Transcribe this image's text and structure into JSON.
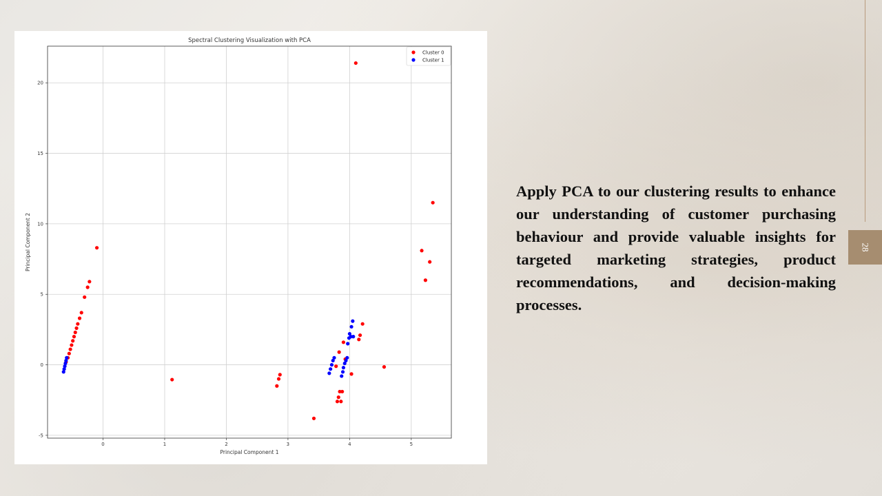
{
  "slide": {
    "body_text": "Apply PCA to our clustering results to enhance our understanding of customer purchasing behaviour and provide valuable insights for targeted marketing strategies, product recommendations, and decision-making processes.",
    "page_number": "28",
    "accent_color": "#a68d70"
  },
  "chart_data": {
    "type": "scatter",
    "title": "Spectral Clustering Visualization with PCA",
    "xlabel": "Principal Component 1",
    "ylabel": "Principal Component 2",
    "xlim": [
      -0.9,
      5.65
    ],
    "ylim": [
      -5.2,
      22.6
    ],
    "x_ticks": [
      0,
      1,
      2,
      3,
      4,
      5
    ],
    "y_ticks": [
      -5,
      0,
      5,
      10,
      15,
      20
    ],
    "grid": true,
    "legend_position": "top-right",
    "series": [
      {
        "name": "Cluster 0",
        "color": "#ff0000",
        "points": [
          [
            -0.6,
            0.2
          ],
          [
            -0.57,
            0.5
          ],
          [
            -0.55,
            0.8
          ],
          [
            -0.53,
            1.1
          ],
          [
            -0.51,
            1.4
          ],
          [
            -0.49,
            1.7
          ],
          [
            -0.47,
            2.0
          ],
          [
            -0.45,
            2.3
          ],
          [
            -0.43,
            2.6
          ],
          [
            -0.41,
            2.9
          ],
          [
            -0.38,
            3.3
          ],
          [
            -0.35,
            3.7
          ],
          [
            -0.3,
            4.8
          ],
          [
            -0.25,
            5.5
          ],
          [
            -0.22,
            5.9
          ],
          [
            -0.1,
            8.3
          ],
          [
            1.12,
            -1.05
          ],
          [
            2.82,
            -1.5
          ],
          [
            2.85,
            -1.0
          ],
          [
            2.87,
            -0.7
          ],
          [
            3.42,
            -3.8
          ],
          [
            3.78,
            -0.1
          ],
          [
            3.8,
            -2.6
          ],
          [
            3.82,
            -2.3
          ],
          [
            3.83,
            0.9
          ],
          [
            3.84,
            -1.9
          ],
          [
            3.86,
            -2.6
          ],
          [
            3.88,
            -1.9
          ],
          [
            3.9,
            1.6
          ],
          [
            3.93,
            0.4
          ],
          [
            4.03,
            -0.65
          ],
          [
            4.1,
            21.4
          ],
          [
            4.15,
            1.8
          ],
          [
            4.17,
            2.1
          ],
          [
            4.21,
            2.9
          ],
          [
            4.56,
            -0.15
          ],
          [
            5.17,
            8.1
          ],
          [
            5.23,
            6.0
          ],
          [
            5.3,
            7.3
          ],
          [
            5.35,
            11.5
          ]
        ]
      },
      {
        "name": "Cluster 1",
        "color": "#0000ff",
        "points": [
          [
            -0.64,
            -0.5
          ],
          [
            -0.63,
            -0.3
          ],
          [
            -0.62,
            -0.1
          ],
          [
            -0.61,
            0.1
          ],
          [
            -0.6,
            0.3
          ],
          [
            -0.59,
            0.5
          ],
          [
            3.67,
            -0.6
          ],
          [
            3.69,
            -0.3
          ],
          [
            3.71,
            0.0
          ],
          [
            3.73,
            0.3
          ],
          [
            3.75,
            0.5
          ],
          [
            3.87,
            -0.8
          ],
          [
            3.89,
            -0.5
          ],
          [
            3.9,
            -0.2
          ],
          [
            3.92,
            0.1
          ],
          [
            3.94,
            0.3
          ],
          [
            3.96,
            0.5
          ],
          [
            3.97,
            1.5
          ],
          [
            3.99,
            1.9
          ],
          [
            4.0,
            2.2
          ],
          [
            4.02,
            2.0
          ],
          [
            4.03,
            2.7
          ],
          [
            4.05,
            3.1
          ],
          [
            4.06,
            2.0
          ]
        ]
      }
    ]
  }
}
